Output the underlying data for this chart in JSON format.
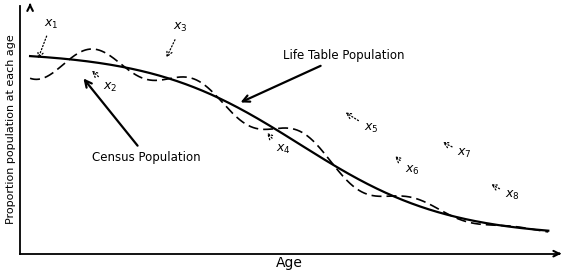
{
  "title": "",
  "xlabel": "Age",
  "ylabel": "Proportion population at each age",
  "background_color": "#ffffff",
  "fig_width": 5.65,
  "fig_height": 2.76,
  "dpi": 100,
  "line_color": "#000000",
  "xlim": [
    0,
    1
  ],
  "ylim": [
    0,
    1
  ]
}
